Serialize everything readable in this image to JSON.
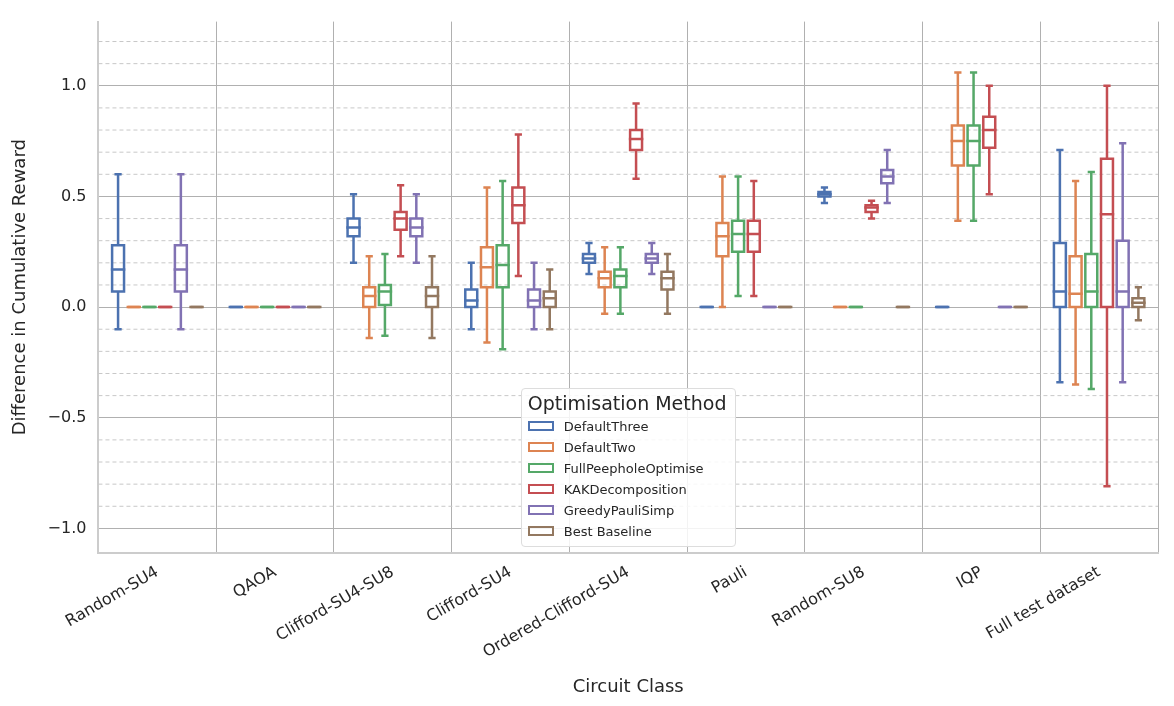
{
  "chart_data": {
    "type": "box",
    "xlabel": "Circuit Class",
    "ylabel": "Difference in Cumulative Reward",
    "legend_title": "Optimisation Method",
    "categories": [
      "Random-SU4",
      "QAOA",
      "Clifford-SU4-SU8",
      "Clifford-SU4",
      "Ordered-Clifford-SU4",
      "Pauli",
      "Random-SU8",
      "IQP",
      "Full test dataset"
    ],
    "ylim": [
      -1.11,
      1.29
    ],
    "yticks": [
      {
        "value": -1.0,
        "label": "−1.0"
      },
      {
        "value": -0.9,
        "label": null
      },
      {
        "value": -0.8,
        "label": null
      },
      {
        "value": -0.7,
        "label": null
      },
      {
        "value": -0.6,
        "label": null
      },
      {
        "value": -0.5,
        "label": "−0.5"
      },
      {
        "value": -0.4,
        "label": null
      },
      {
        "value": -0.3,
        "label": null
      },
      {
        "value": -0.2,
        "label": null
      },
      {
        "value": -0.1,
        "label": null
      },
      {
        "value": 0,
        "label": "0.0"
      },
      {
        "value": 0.1,
        "label": null
      },
      {
        "value": 0.2,
        "label": null
      },
      {
        "value": 0.3,
        "label": null
      },
      {
        "value": 0.4,
        "label": null
      },
      {
        "value": 0.5,
        "label": "0.5"
      },
      {
        "value": 0.6,
        "label": null
      },
      {
        "value": 0.7,
        "label": null
      },
      {
        "value": 0.8,
        "label": null
      },
      {
        "value": 0.9,
        "label": null
      },
      {
        "value": 1.0,
        "label": "1.0"
      },
      {
        "value": 1.1,
        "label": null
      },
      {
        "value": 1.2,
        "label": null
      }
    ],
    "grid": true,
    "legend": "bottom",
    "series": [
      {
        "name": "DefaultThree",
        "color": "#4c72b0",
        "boxes": [
          {
            "low": -0.1,
            "q1": 0.07,
            "median": 0.17,
            "q3": 0.28,
            "high": 0.6
          },
          {
            "low": 0,
            "q1": 0,
            "median": 0,
            "q3": 0,
            "high": 0
          },
          {
            "low": 0.2,
            "q1": 0.32,
            "median": 0.36,
            "q3": 0.4,
            "high": 0.51
          },
          {
            "low": -0.1,
            "q1": 0,
            "median": 0.03,
            "q3": 0.08,
            "high": 0.2
          },
          {
            "low": 0.15,
            "q1": 0.2,
            "median": 0.22,
            "q3": 0.24,
            "high": 0.29
          },
          {
            "low": 0,
            "q1": 0,
            "median": 0,
            "q3": 0,
            "high": 0
          },
          {
            "low": 0.47,
            "q1": 0.5,
            "median": 0.51,
            "q3": 0.52,
            "high": 0.54
          },
          {
            "low": 0,
            "q1": 0,
            "median": 0,
            "q3": 0,
            "high": 0
          },
          {
            "low": -0.34,
            "q1": 0,
            "median": 0.07,
            "q3": 0.29,
            "high": 0.71
          }
        ]
      },
      {
        "name": "DefaultTwo",
        "color": "#dd8452",
        "boxes": [
          {
            "low": 0,
            "q1": 0,
            "median": 0,
            "q3": 0,
            "high": 0
          },
          {
            "low": 0,
            "q1": 0,
            "median": 0,
            "q3": 0,
            "high": 0
          },
          {
            "low": -0.14,
            "q1": 0,
            "median": 0.05,
            "q3": 0.09,
            "high": 0.23
          },
          {
            "low": -0.16,
            "q1": 0.09,
            "median": 0.18,
            "q3": 0.27,
            "high": 0.54
          },
          {
            "low": -0.03,
            "q1": 0.09,
            "median": 0.13,
            "q3": 0.16,
            "high": 0.27
          },
          {
            "low": 0,
            "q1": 0.23,
            "median": 0.32,
            "q3": 0.38,
            "high": 0.59
          },
          {
            "low": 0,
            "q1": 0,
            "median": 0,
            "q3": 0,
            "high": 0
          },
          {
            "low": 0.39,
            "q1": 0.64,
            "median": 0.75,
            "q3": 0.82,
            "high": 1.06
          },
          {
            "low": -0.35,
            "q1": 0,
            "median": 0.06,
            "q3": 0.23,
            "high": 0.57
          }
        ]
      },
      {
        "name": "FullPeepholeOptimise",
        "color": "#55a868",
        "boxes": [
          {
            "low": 0,
            "q1": 0,
            "median": 0,
            "q3": 0,
            "high": 0
          },
          {
            "low": 0,
            "q1": 0,
            "median": 0,
            "q3": 0,
            "high": 0
          },
          {
            "low": -0.13,
            "q1": 0.01,
            "median": 0.07,
            "q3": 0.1,
            "high": 0.24
          },
          {
            "low": -0.19,
            "q1": 0.09,
            "median": 0.19,
            "q3": 0.28,
            "high": 0.57
          },
          {
            "low": -0.03,
            "q1": 0.09,
            "median": 0.14,
            "q3": 0.17,
            "high": 0.27
          },
          {
            "low": 0.05,
            "q1": 0.25,
            "median": 0.33,
            "q3": 0.39,
            "high": 0.59
          },
          {
            "low": 0,
            "q1": 0,
            "median": 0,
            "q3": 0,
            "high": 0
          },
          {
            "low": 0.39,
            "q1": 0.64,
            "median": 0.75,
            "q3": 0.82,
            "high": 1.06
          },
          {
            "low": -0.37,
            "q1": 0,
            "median": 0.07,
            "q3": 0.24,
            "high": 0.61
          }
        ]
      },
      {
        "name": "KAKDecomposition",
        "color": "#c44e52",
        "boxes": [
          {
            "low": 0,
            "q1": 0,
            "median": 0,
            "q3": 0,
            "high": 0
          },
          {
            "low": 0,
            "q1": 0,
            "median": 0,
            "q3": 0,
            "high": 0
          },
          {
            "low": 0.23,
            "q1": 0.35,
            "median": 0.4,
            "q3": 0.43,
            "high": 0.55
          },
          {
            "low": 0.14,
            "q1": 0.38,
            "median": 0.46,
            "q3": 0.54,
            "high": 0.78
          },
          {
            "low": 0.58,
            "q1": 0.71,
            "median": 0.76,
            "q3": 0.8,
            "high": 0.92
          },
          {
            "low": 0.05,
            "q1": 0.25,
            "median": 0.33,
            "q3": 0.39,
            "high": 0.57
          },
          {
            "low": 0.4,
            "q1": 0.43,
            "median": 0.45,
            "q3": 0.46,
            "high": 0.48
          },
          {
            "low": 0.51,
            "q1": 0.72,
            "median": 0.8,
            "q3": 0.86,
            "high": 1.0
          },
          {
            "low": -0.81,
            "q1": 0,
            "median": 0.42,
            "q3": 0.67,
            "high": 1.0
          }
        ]
      },
      {
        "name": "GreedyPauliSimp",
        "color": "#8172b3",
        "boxes": [
          {
            "low": -0.1,
            "q1": 0.07,
            "median": 0.17,
            "q3": 0.28,
            "high": 0.6
          },
          {
            "low": 0,
            "q1": 0,
            "median": 0,
            "q3": 0,
            "high": 0
          },
          {
            "low": 0.2,
            "q1": 0.32,
            "median": 0.36,
            "q3": 0.4,
            "high": 0.51
          },
          {
            "low": -0.1,
            "q1": 0,
            "median": 0.03,
            "q3": 0.08,
            "high": 0.2
          },
          {
            "low": 0.15,
            "q1": 0.2,
            "median": 0.22,
            "q3": 0.24,
            "high": 0.29
          },
          {
            "low": 0,
            "q1": 0,
            "median": 0,
            "q3": 0,
            "high": 0
          },
          {
            "low": 0.47,
            "q1": 0.56,
            "median": 0.59,
            "q3": 0.62,
            "high": 0.71
          },
          {
            "low": 0,
            "q1": 0,
            "median": 0,
            "q3": 0,
            "high": 0
          },
          {
            "low": -0.34,
            "q1": 0,
            "median": 0.07,
            "q3": 0.3,
            "high": 0.74
          }
        ]
      },
      {
        "name": "Best Baseline",
        "color": "#937860",
        "boxes": [
          {
            "low": 0,
            "q1": 0,
            "median": 0,
            "q3": 0,
            "high": 0
          },
          {
            "low": 0,
            "q1": 0,
            "median": 0,
            "q3": 0,
            "high": 0
          },
          {
            "low": -0.14,
            "q1": 0,
            "median": 0.05,
            "q3": 0.09,
            "high": 0.23
          },
          {
            "low": -0.1,
            "q1": 0,
            "median": 0.04,
            "q3": 0.07,
            "high": 0.17
          },
          {
            "low": -0.03,
            "q1": 0.08,
            "median": 0.13,
            "q3": 0.16,
            "high": 0.24
          },
          {
            "low": 0,
            "q1": 0,
            "median": 0,
            "q3": 0,
            "high": 0
          },
          {
            "low": 0,
            "q1": 0,
            "median": 0,
            "q3": 0,
            "high": 0
          },
          {
            "low": 0,
            "q1": 0,
            "median": 0,
            "q3": 0,
            "high": 0
          },
          {
            "low": -0.06,
            "q1": 0,
            "median": 0.02,
            "q3": 0.04,
            "high": 0.09
          }
        ]
      }
    ]
  }
}
